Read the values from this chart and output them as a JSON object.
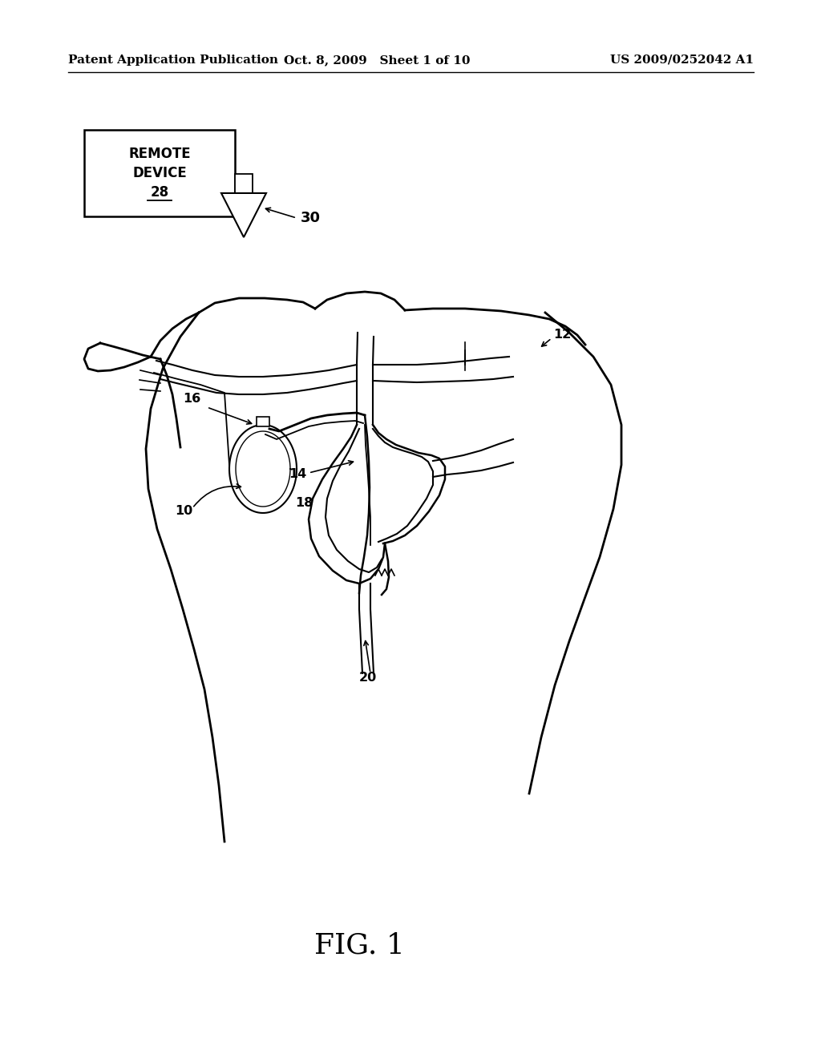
{
  "background_color": "#ffffff",
  "header_left": "Patent Application Publication",
  "header_mid": "Oct. 8, 2009   Sheet 1 of 10",
  "header_right": "US 2009/0252042 A1",
  "fig_label": "FIG. 1",
  "fig_label_fontsize": 26
}
